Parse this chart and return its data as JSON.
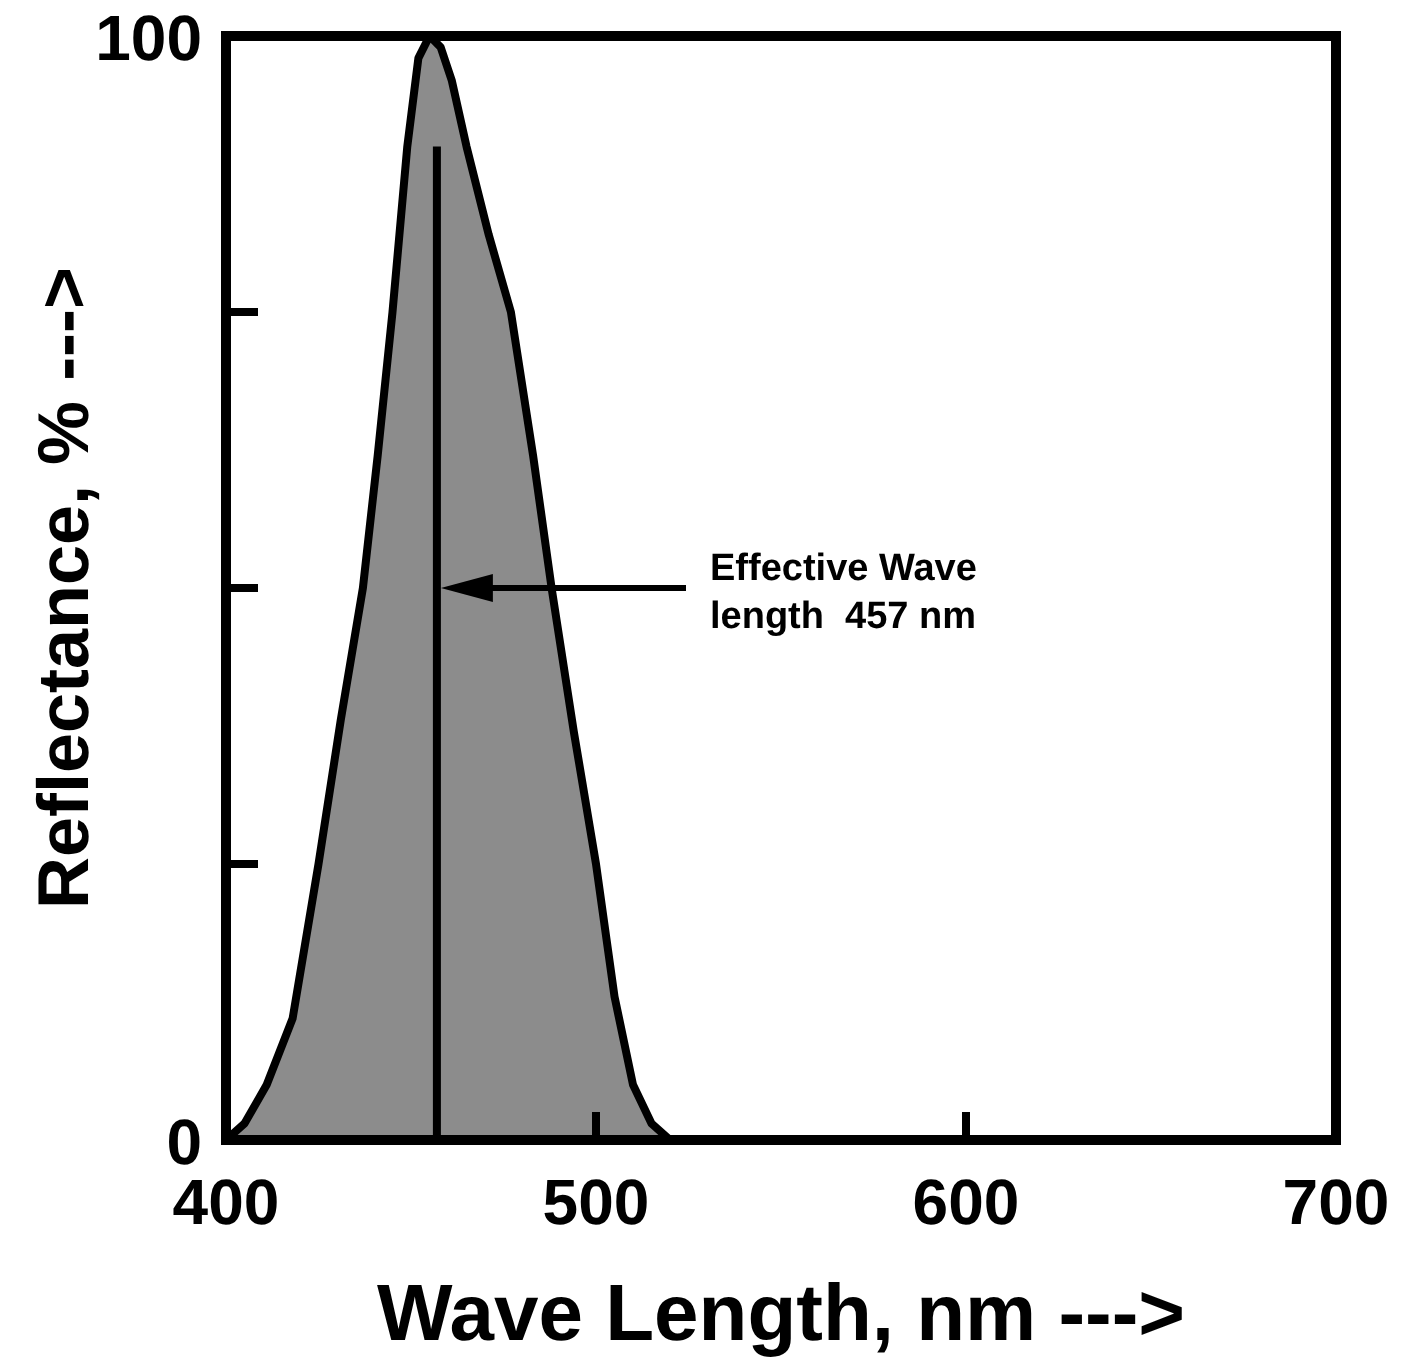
{
  "chart_data": {
    "type": "area",
    "xlabel": "Wave Length, nm --->",
    "ylabel": "Reflectance, % --->",
    "x": [
      400,
      405,
      411,
      418,
      425,
      431,
      437,
      441,
      445,
      449,
      452,
      455,
      458,
      461,
      465,
      471,
      477,
      483,
      488,
      494,
      500,
      505,
      510,
      515,
      520
    ],
    "series": [
      {
        "color": "#8c8c8c",
        "values": [
          0,
          1.5,
          5,
          11,
          25,
          38,
          50,
          62,
          75,
          90,
          98,
          100,
          99,
          96,
          90,
          82,
          75,
          62,
          50,
          37,
          25,
          13,
          5,
          1.5,
          0
        ]
      }
    ],
    "xlim": [
      400,
      700
    ],
    "xticks": [
      400,
      500,
      600,
      700
    ],
    "ylim": [
      0,
      100
    ],
    "yticks": [
      0,
      {
        "value": 25,
        "label": null
      },
      {
        "value": 50,
        "label": null
      },
      {
        "value": 75,
        "label": null
      },
      100
    ],
    "ref_lines": [
      {
        "axis": "x",
        "value": 457,
        "color": "#000000"
      }
    ],
    "annotations": [
      "Effective Wave\nlength  457 nm"
    ],
    "grid": false
  }
}
